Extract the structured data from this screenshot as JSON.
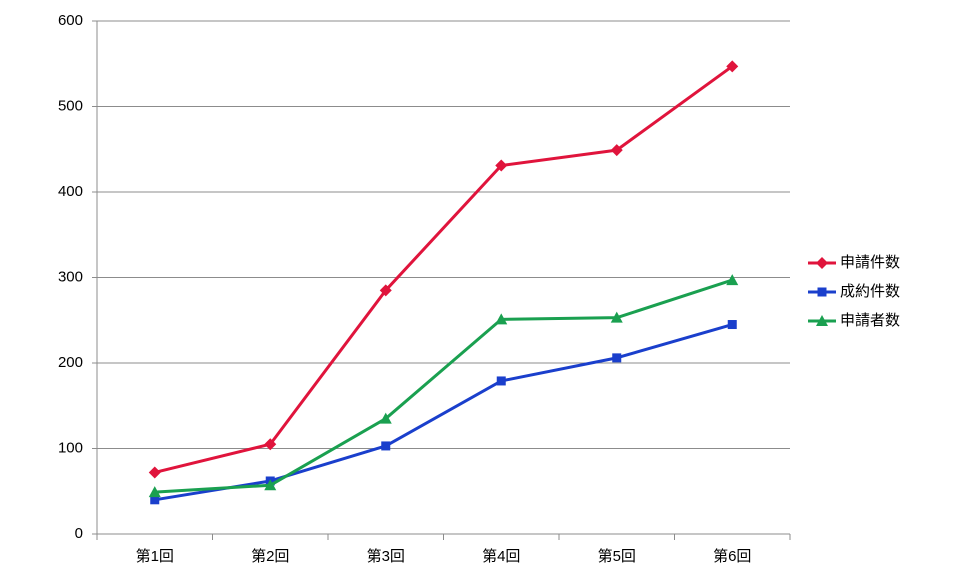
{
  "chart_data": {
    "type": "line",
    "categories": [
      "第1回",
      "第2回",
      "第3回",
      "第4回",
      "第5回",
      "第6回"
    ],
    "series": [
      {
        "name": "申請件数",
        "color": "#e0143c",
        "marker": "diamond",
        "values": [
          72,
          105,
          285,
          431,
          449,
          547
        ]
      },
      {
        "name": "成約件数",
        "color": "#1a3fcc",
        "marker": "square",
        "values": [
          40,
          62,
          103,
          179,
          206,
          245
        ]
      },
      {
        "name": "申請者数",
        "color": "#1aa050",
        "marker": "triangle",
        "values": [
          49,
          57,
          135,
          251,
          253,
          297
        ]
      }
    ],
    "ylim": [
      0,
      600
    ],
    "yticks": [
      0,
      100,
      200,
      300,
      400,
      500,
      600
    ],
    "grid": true,
    "legend": "right"
  }
}
